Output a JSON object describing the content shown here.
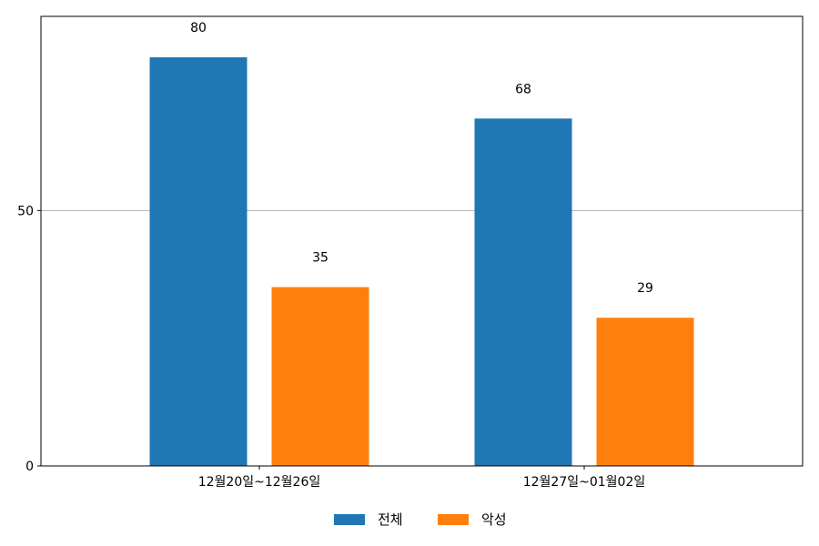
{
  "chart_data": {
    "type": "bar",
    "categories": [
      "12월20일~12월26일",
      "12월27일~01월02일"
    ],
    "series": [
      {
        "name": "전체",
        "values": [
          80,
          68
        ],
        "color": "#1f77b4"
      },
      {
        "name": "악성",
        "values": [
          35,
          29
        ],
        "color": "#ff7f0e"
      }
    ],
    "yticks": [
      0,
      50
    ],
    "ylim": [
      0,
      88
    ],
    "grid": "horizontal",
    "legend_position": "bottom-center"
  }
}
